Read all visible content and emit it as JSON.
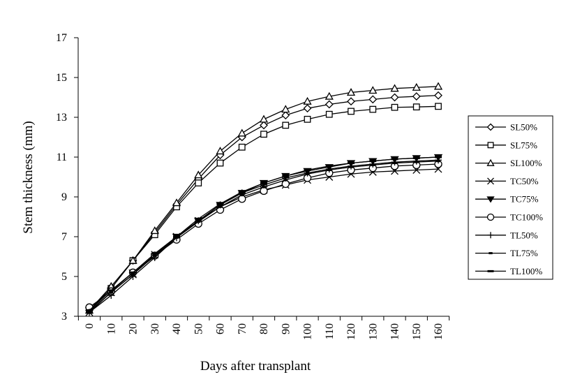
{
  "chart_data": {
    "type": "line",
    "title": "",
    "xlabel": "Days after transplant",
    "ylabel": "Stem thickness (mm)",
    "x": [
      0,
      10,
      20,
      30,
      40,
      50,
      60,
      70,
      80,
      90,
      100,
      110,
      120,
      130,
      140,
      150,
      160
    ],
    "xlim": [
      0,
      160
    ],
    "ylim": [
      3,
      17
    ],
    "yticks": [
      3,
      5,
      7,
      9,
      11,
      13,
      15,
      17
    ],
    "grid": false,
    "legend_position": "right",
    "line_color": "#000000",
    "series": [
      {
        "name": "SL50%",
        "marker": "diamond",
        "values": [
          3.3,
          4.4,
          5.8,
          7.2,
          8.6,
          9.9,
          11.1,
          12.0,
          12.6,
          13.1,
          13.45,
          13.65,
          13.8,
          13.9,
          14.0,
          14.05,
          14.1
        ]
      },
      {
        "name": "SL75%",
        "marker": "square",
        "values": [
          3.3,
          4.4,
          5.8,
          7.1,
          8.5,
          9.7,
          10.7,
          11.5,
          12.15,
          12.6,
          12.9,
          13.15,
          13.3,
          13.4,
          13.5,
          13.52,
          13.55
        ]
      },
      {
        "name": "SL100%",
        "marker": "triangle",
        "values": [
          3.3,
          4.5,
          5.8,
          7.3,
          8.7,
          10.1,
          11.3,
          12.2,
          12.9,
          13.4,
          13.8,
          14.05,
          14.25,
          14.35,
          14.45,
          14.5,
          14.55
        ]
      },
      {
        "name": "TC50%",
        "marker": "x",
        "values": [
          3.2,
          4.2,
          5.1,
          6.1,
          7.0,
          7.8,
          8.5,
          9.0,
          9.35,
          9.6,
          9.85,
          10.0,
          10.15,
          10.25,
          10.3,
          10.35,
          10.4
        ]
      },
      {
        "name": "TC75%",
        "marker": "triangle-down",
        "values": [
          3.3,
          4.3,
          5.2,
          6.0,
          7.0,
          7.8,
          8.6,
          9.2,
          9.7,
          10.05,
          10.3,
          10.5,
          10.7,
          10.8,
          10.9,
          10.95,
          11.0
        ]
      },
      {
        "name": "TC100%",
        "marker": "circle",
        "values": [
          3.45,
          4.25,
          5.2,
          6.05,
          6.85,
          7.65,
          8.35,
          8.9,
          9.3,
          9.65,
          9.95,
          10.2,
          10.35,
          10.45,
          10.55,
          10.6,
          10.65
        ]
      },
      {
        "name": "TL50%",
        "marker": "plus",
        "values": [
          3.2,
          4.05,
          5.0,
          5.95,
          6.95,
          7.8,
          8.6,
          9.2,
          9.6,
          9.95,
          10.2,
          10.4,
          10.55,
          10.65,
          10.75,
          10.8,
          10.85
        ]
      },
      {
        "name": "TL75%",
        "marker": "dash",
        "values": [
          3.25,
          4.2,
          5.1,
          6.05,
          6.95,
          7.75,
          8.5,
          9.1,
          9.5,
          9.85,
          10.15,
          10.35,
          10.5,
          10.6,
          10.7,
          10.75,
          10.8
        ]
      },
      {
        "name": "TL100%",
        "marker": "long-dash",
        "values": [
          3.3,
          4.3,
          5.2,
          6.15,
          7.0,
          7.9,
          8.65,
          9.25,
          9.7,
          10.05,
          10.35,
          10.55,
          10.7,
          10.8,
          10.9,
          10.95,
          11.0
        ]
      }
    ]
  }
}
